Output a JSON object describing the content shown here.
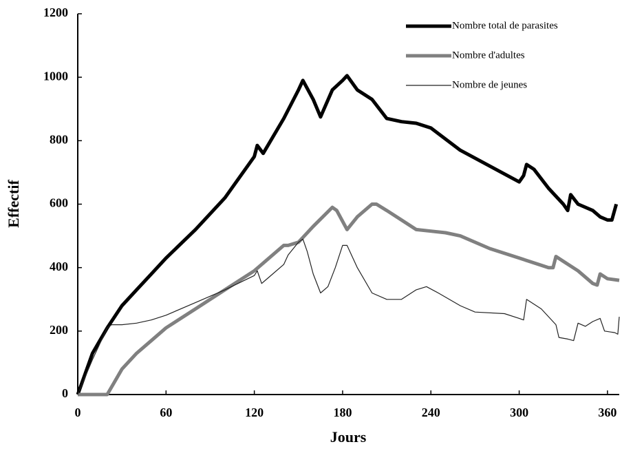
{
  "chart_data": {
    "type": "line",
    "xlabel": "Jours",
    "ylabel": "Effectif",
    "xlim": [
      0,
      368
    ],
    "ylim": [
      0,
      1200
    ],
    "xticks": [
      0,
      60,
      120,
      180,
      240,
      300,
      360
    ],
    "yticks": [
      0,
      200,
      400,
      600,
      800,
      1000,
      1200
    ],
    "grid": false,
    "legend": "upper right",
    "series": [
      {
        "name": "Nombre total de parasites",
        "color": "#000000",
        "linewidth": 5,
        "x": [
          0,
          10,
          20,
          30,
          40,
          50,
          60,
          80,
          100,
          120,
          122,
          126,
          140,
          150,
          153,
          160,
          165,
          173,
          180,
          183,
          190,
          200,
          210,
          220,
          230,
          240,
          260,
          280,
          300,
          303,
          305,
          310,
          320,
          330,
          333,
          335,
          340,
          350,
          355,
          360,
          363,
          366
        ],
        "values": [
          0,
          130,
          210,
          280,
          330,
          380,
          430,
          520,
          620,
          750,
          785,
          760,
          870,
          960,
          990,
          930,
          875,
          960,
          990,
          1005,
          960,
          930,
          870,
          860,
          855,
          840,
          770,
          720,
          670,
          690,
          725,
          710,
          650,
          600,
          580,
          630,
          600,
          580,
          560,
          550,
          550,
          600
        ]
      },
      {
        "name": "Nombre d'adultes",
        "color": "#808080",
        "linewidth": 5,
        "x": [
          0,
          20,
          25,
          30,
          40,
          50,
          60,
          80,
          100,
          120,
          140,
          143,
          150,
          160,
          173,
          176,
          183,
          190,
          200,
          203,
          210,
          220,
          230,
          240,
          250,
          260,
          280,
          300,
          320,
          323,
          325,
          330,
          340,
          350,
          353,
          355,
          360,
          368
        ],
        "values": [
          0,
          0,
          40,
          80,
          130,
          170,
          210,
          270,
          330,
          390,
          470,
          470,
          480,
          530,
          590,
          580,
          520,
          560,
          600,
          600,
          580,
          550,
          520,
          515,
          510,
          500,
          460,
          430,
          400,
          400,
          435,
          420,
          390,
          350,
          345,
          380,
          365,
          360
        ]
      },
      {
        "name": "Nombre de jeunes",
        "color": "#222222",
        "linewidth": 1.2,
        "x": [
          0,
          10,
          20,
          23,
          30,
          40,
          50,
          60,
          80,
          100,
          120,
          122,
          125,
          130,
          140,
          143,
          150,
          153,
          156,
          160,
          165,
          170,
          175,
          180,
          183,
          190,
          200,
          210,
          220,
          230,
          237,
          245,
          260,
          270,
          290,
          300,
          303,
          305,
          315,
          325,
          327,
          333,
          337,
          340,
          345,
          350,
          355,
          358,
          365,
          367,
          368
        ],
        "values": [
          0,
          110,
          210,
          220,
          220,
          225,
          235,
          250,
          290,
          330,
          375,
          390,
          350,
          370,
          410,
          440,
          480,
          490,
          450,
          380,
          320,
          340,
          400,
          470,
          470,
          400,
          320,
          300,
          300,
          330,
          340,
          320,
          280,
          260,
          255,
          240,
          235,
          300,
          270,
          220,
          180,
          175,
          170,
          225,
          215,
          230,
          240,
          200,
          195,
          190,
          245
        ]
      }
    ]
  }
}
